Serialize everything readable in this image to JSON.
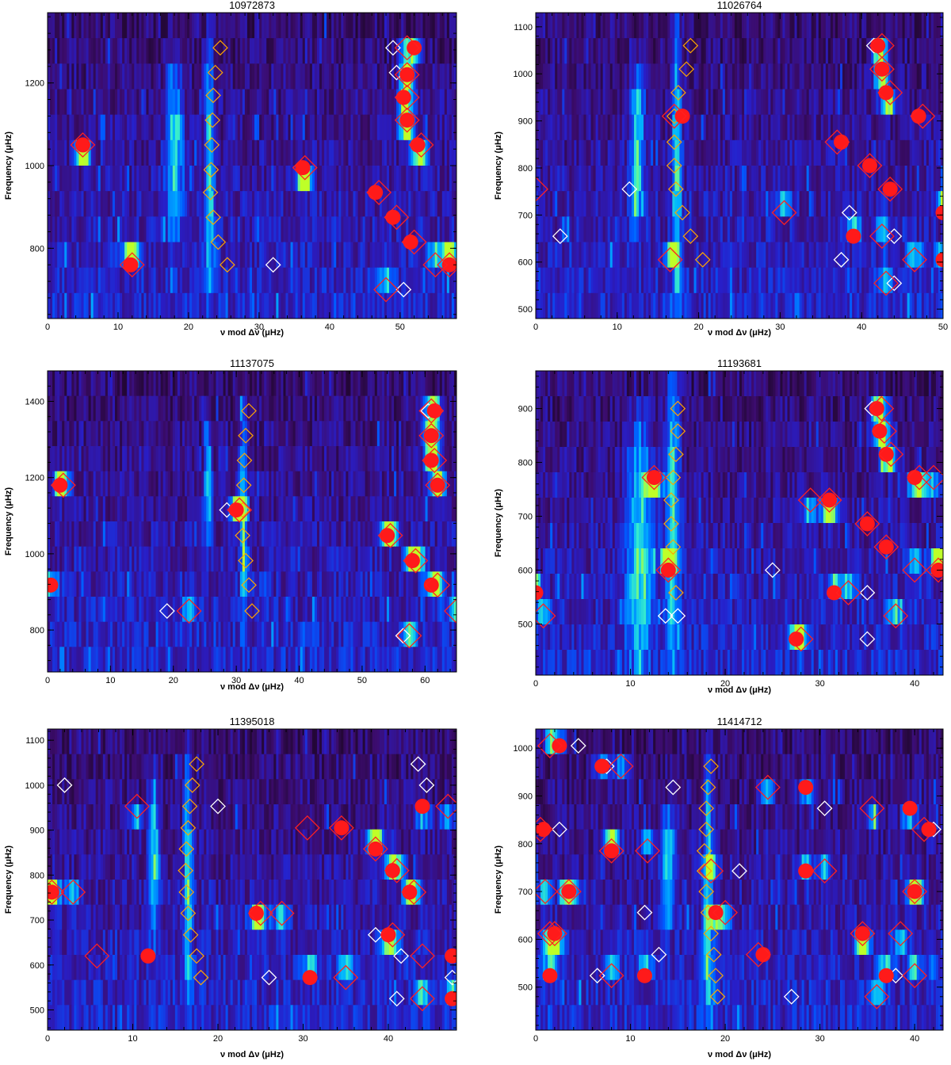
{
  "chart_data": [
    {
      "type": "heatmap",
      "title": "10972873",
      "xlabel": "ν mod Δν (μHz)",
      "ylabel": "Frequency (μHz)",
      "xlim": [
        0,
        58
      ],
      "ylim": [
        630,
        1370
      ],
      "xticks": [
        0,
        10,
        20,
        30,
        40,
        50
      ],
      "yticks": [
        800,
        1000,
        1200
      ],
      "ridges": [
        [
          18,
          1050,
          1.2,
          280
        ],
        [
          23,
          1000,
          0.7,
          380
        ]
      ],
      "red_circles": [
        [
          5,
          1050
        ],
        [
          11.8,
          760
        ],
        [
          36.2,
          995
        ],
        [
          46.5,
          935
        ],
        [
          49,
          875
        ],
        [
          51.5,
          815
        ],
        [
          52.5,
          1050
        ],
        [
          51,
          1110
        ],
        [
          50.5,
          1165
        ],
        [
          51,
          1220
        ],
        [
          52,
          1285
        ],
        [
          57,
          760
        ]
      ],
      "red_diamonds": [
        [
          5,
          1050
        ],
        [
          12,
          760
        ],
        [
          36.5,
          995
        ],
        [
          47,
          935
        ],
        [
          49.5,
          875
        ],
        [
          52,
          815
        ],
        [
          53,
          1050
        ],
        [
          51,
          1110
        ],
        [
          51,
          1165
        ],
        [
          51,
          1220
        ],
        [
          51,
          1285
        ],
        [
          48,
          700
        ],
        [
          55,
          760
        ],
        [
          57,
          760
        ]
      ],
      "white_diamonds": [
        [
          32,
          760
        ],
        [
          50.5,
          700
        ],
        [
          49,
          1285
        ],
        [
          49.5,
          1225
        ]
      ],
      "orange_diamonds": [
        [
          24.5,
          1285
        ],
        [
          23.8,
          1225
        ],
        [
          23.5,
          1170
        ],
        [
          23.4,
          1110
        ],
        [
          23.3,
          1050
        ],
        [
          23.2,
          990
        ],
        [
          23.1,
          935
        ],
        [
          23.5,
          875
        ],
        [
          24.2,
          815
        ],
        [
          25.5,
          760
        ]
      ]
    },
    {
      "type": "heatmap",
      "title": "11026764",
      "xlabel": "ν mod Δν (μHz)",
      "ylabel": "Frequency (μHz)",
      "xlim": [
        0,
        50
      ],
      "ylim": [
        480,
        1130
      ],
      "xticks": [
        0,
        10,
        20,
        30,
        40,
        50
      ],
      "yticks": [
        500,
        600,
        700,
        800,
        900,
        1000,
        1100
      ],
      "ridges": [
        [
          12.5,
          850,
          0.9,
          230
        ],
        [
          17.3,
          800,
          0.6,
          420
        ]
      ],
      "red_circles": [
        [
          18,
          910
        ],
        [
          37.5,
          855
        ],
        [
          41,
          805
        ],
        [
          43.5,
          755
        ],
        [
          42,
          1060
        ],
        [
          42.5,
          1010
        ],
        [
          43,
          960
        ],
        [
          47,
          910
        ],
        [
          39,
          655
        ],
        [
          50,
          705
        ],
        [
          50,
          605
        ]
      ],
      "red_diamonds": [
        [
          17,
          910
        ],
        [
          37,
          855
        ],
        [
          41,
          805
        ],
        [
          43.5,
          755
        ],
        [
          42.5,
          1060
        ],
        [
          42.5,
          1010
        ],
        [
          43.5,
          960
        ],
        [
          47.5,
          910
        ],
        [
          16.5,
          605
        ],
        [
          30.5,
          705
        ],
        [
          42.5,
          655
        ],
        [
          46.5,
          605
        ],
        [
          43,
          555
        ],
        [
          0,
          755
        ]
      ],
      "white_diamonds": [
        [
          3,
          655
        ],
        [
          11.5,
          755
        ],
        [
          38.5,
          705
        ],
        [
          44,
          655
        ],
        [
          37.5,
          605
        ],
        [
          44,
          555
        ],
        [
          41.5,
          1060
        ]
      ],
      "orange_diamonds": [
        [
          19,
          1060
        ],
        [
          18.5,
          1010
        ],
        [
          17.5,
          960
        ],
        [
          17,
          910
        ],
        [
          17,
          855
        ],
        [
          17,
          805
        ],
        [
          17.2,
          755
        ],
        [
          18,
          705
        ],
        [
          19,
          655
        ],
        [
          20.5,
          605
        ]
      ]
    },
    {
      "type": "heatmap",
      "title": "11137075",
      "xlabel": "ν mod Δν (μHz)",
      "ylabel": "Frequency (μHz)",
      "xlim": [
        0,
        65
      ],
      "ylim": [
        690,
        1480
      ],
      "xticks": [
        0,
        10,
        20,
        30,
        40,
        50,
        60
      ],
      "yticks": [
        800,
        1000,
        1200,
        1400
      ],
      "ridges": [
        [
          25.5,
          1180,
          0.6,
          200
        ],
        [
          31.2,
          1120,
          0.6,
          380
        ]
      ],
      "red_circles": [
        [
          2,
          1180
        ],
        [
          30,
          1115
        ],
        [
          54,
          1048
        ],
        [
          58,
          982
        ],
        [
          61,
          918
        ],
        [
          61.5,
          1375
        ],
        [
          61,
          1310
        ],
        [
          61,
          1245
        ],
        [
          62,
          1180
        ],
        [
          0.5,
          918
        ]
      ],
      "red_diamonds": [
        [
          2.5,
          1180
        ],
        [
          30.5,
          1115
        ],
        [
          54.5,
          1048
        ],
        [
          58.5,
          982
        ],
        [
          62,
          918
        ],
        [
          61,
          1375
        ],
        [
          61,
          1310
        ],
        [
          61.5,
          1245
        ],
        [
          62,
          1180
        ],
        [
          22.5,
          850
        ],
        [
          57.5,
          785
        ],
        [
          65,
          850
        ]
      ],
      "white_diamonds": [
        [
          19,
          850
        ],
        [
          28.5,
          1115
        ],
        [
          56.5,
          785
        ],
        [
          60.5,
          1375
        ]
      ],
      "orange_diamonds": [
        [
          32,
          1375
        ],
        [
          31.5,
          1310
        ],
        [
          31.3,
          1245
        ],
        [
          31.2,
          1180
        ],
        [
          31,
          1115
        ],
        [
          31,
          1048
        ],
        [
          31.5,
          982
        ],
        [
          32,
          918
        ],
        [
          32.5,
          850
        ]
      ]
    },
    {
      "type": "heatmap",
      "title": "11193681",
      "xlabel": "ν mod Δν (μHz)",
      "ylabel": "Frequency (μHz)",
      "xlim": [
        0,
        43
      ],
      "ylim": [
        405,
        970
      ],
      "xticks": [
        0,
        10,
        20,
        30,
        40
      ],
      "yticks": [
        500,
        600,
        700,
        800,
        900
      ],
      "ridges": [
        [
          11,
          660,
          1.4,
          280
        ],
        [
          14.5,
          720,
          0.7,
          380
        ]
      ],
      "red_circles": [
        [
          12.5,
          772
        ],
        [
          14,
          600
        ],
        [
          31,
          730
        ],
        [
          35,
          686
        ],
        [
          37,
          643
        ],
        [
          40,
          772
        ],
        [
          42.5,
          600
        ],
        [
          36,
          900
        ],
        [
          36.3,
          858
        ],
        [
          37,
          815
        ],
        [
          0,
          558
        ],
        [
          31.5,
          558
        ],
        [
          27.5,
          472
        ]
      ],
      "red_diamonds": [
        [
          12.5,
          772
        ],
        [
          14,
          600
        ],
        [
          31,
          730
        ],
        [
          35,
          686
        ],
        [
          37,
          643
        ],
        [
          40.5,
          772
        ],
        [
          42.5,
          600
        ],
        [
          36.5,
          900
        ],
        [
          36.8,
          858
        ],
        [
          37.5,
          815
        ],
        [
          42,
          772
        ],
        [
          40,
          600
        ],
        [
          0.8,
          515
        ],
        [
          29,
          730
        ],
        [
          33,
          558
        ],
        [
          28,
          472
        ],
        [
          38,
          515
        ]
      ],
      "white_diamonds": [
        [
          25,
          600
        ],
        [
          35,
          558
        ],
        [
          35,
          472
        ],
        [
          13.7,
          515
        ],
        [
          15,
          515
        ],
        [
          35.5,
          900
        ]
      ],
      "orange_diamonds": [
        [
          15,
          900
        ],
        [
          15,
          858
        ],
        [
          14.8,
          815
        ],
        [
          14.5,
          772
        ],
        [
          14.3,
          730
        ],
        [
          14.3,
          686
        ],
        [
          14.5,
          643
        ],
        [
          14.5,
          600
        ],
        [
          14.8,
          558
        ]
      ]
    },
    {
      "type": "heatmap",
      "title": "11395018",
      "xlabel": "ν mod Δν (μHz)",
      "ylabel": "Frequency (μHz)",
      "xlim": [
        0,
        48
      ],
      "ylim": [
        455,
        1125
      ],
      "xticks": [
        0,
        10,
        20,
        30,
        40
      ],
      "yticks": [
        500,
        600,
        700,
        800,
        900,
        1000,
        1100
      ],
      "ridges": [
        [
          12.5,
          840,
          0.6,
          230
        ],
        [
          16.5,
          820,
          0.5,
          380
        ]
      ],
      "red_circles": [
        [
          0.5,
          762
        ],
        [
          11.8,
          620
        ],
        [
          24.5,
          715
        ],
        [
          30.8,
          572
        ],
        [
          34.5,
          905
        ],
        [
          38.5,
          858
        ],
        [
          40.5,
          810
        ],
        [
          42.5,
          762
        ],
        [
          44,
          953
        ],
        [
          40,
          667
        ],
        [
          47.5,
          620
        ],
        [
          47.5,
          525
        ]
      ],
      "red_diamonds": [
        [
          0.5,
          762
        ],
        [
          3,
          762
        ],
        [
          5.8,
          620
        ],
        [
          10.5,
          953
        ],
        [
          25,
          715
        ],
        [
          27.5,
          715
        ],
        [
          30.5,
          905
        ],
        [
          34.5,
          905
        ],
        [
          38.5,
          858
        ],
        [
          41,
          810
        ],
        [
          43,
          762
        ],
        [
          35,
          572
        ],
        [
          44,
          620
        ],
        [
          40.5,
          667
        ],
        [
          44,
          525
        ],
        [
          47,
          953
        ]
      ],
      "white_diamonds": [
        [
          2,
          1000
        ],
        [
          20,
          953
        ],
        [
          26,
          572
        ],
        [
          38.5,
          667
        ],
        [
          41.5,
          620
        ],
        [
          41,
          525
        ],
        [
          43.5,
          1047
        ],
        [
          44.5,
          1000
        ],
        [
          47.5,
          572
        ]
      ],
      "orange_diamonds": [
        [
          17.5,
          1047
        ],
        [
          17,
          1000
        ],
        [
          16.7,
          953
        ],
        [
          16.5,
          905
        ],
        [
          16.3,
          858
        ],
        [
          16.2,
          810
        ],
        [
          16.3,
          762
        ],
        [
          16.5,
          715
        ],
        [
          16.8,
          667
        ],
        [
          17.5,
          620
        ],
        [
          18,
          572
        ]
      ]
    },
    {
      "type": "heatmap",
      "title": "11414712",
      "xlabel": "ν mod Δν (μHz)",
      "ylabel": "Frequency (μHz)",
      "xlim": [
        0,
        43
      ],
      "ylim": [
        410,
        1040
      ],
      "xticks": [
        0,
        10,
        20,
        30,
        40
      ],
      "yticks": [
        500,
        600,
        700,
        800,
        900,
        1000
      ],
      "ridges": [
        [
          14,
          750,
          0.7,
          160
        ],
        [
          18.2,
          700,
          0.5,
          380
        ]
      ],
      "red_circles": [
        [
          2.5,
          1005
        ],
        [
          7,
          962
        ],
        [
          0.8,
          830
        ],
        [
          8,
          785
        ],
        [
          3.5,
          700
        ],
        [
          2,
          612
        ],
        [
          1.5,
          524
        ],
        [
          11.5,
          524
        ],
        [
          19,
          656
        ],
        [
          24,
          568
        ],
        [
          28.5,
          743
        ],
        [
          28.5,
          918
        ],
        [
          34.5,
          612
        ],
        [
          37,
          524
        ],
        [
          39.5,
          874
        ],
        [
          40,
          700
        ],
        [
          41.5,
          830
        ]
      ],
      "red_diamonds": [
        [
          1.5,
          1005
        ],
        [
          9,
          962
        ],
        [
          0.5,
          830
        ],
        [
          8,
          785
        ],
        [
          11.8,
          785
        ],
        [
          1,
          700
        ],
        [
          3.5,
          700
        ],
        [
          1.5,
          612
        ],
        [
          2,
          612
        ],
        [
          8,
          524
        ],
        [
          18.5,
          743
        ],
        [
          20,
          656
        ],
        [
          24.5,
          918
        ],
        [
          30.5,
          743
        ],
        [
          23.5,
          568
        ],
        [
          34.5,
          612
        ],
        [
          35.5,
          874
        ],
        [
          38.5,
          612
        ],
        [
          36,
          480
        ],
        [
          41,
          830
        ],
        [
          40,
          700
        ],
        [
          40,
          524
        ]
      ],
      "white_diamonds": [
        [
          4.5,
          1005
        ],
        [
          7.5,
          962
        ],
        [
          2.5,
          830
        ],
        [
          6.5,
          524
        ],
        [
          11.5,
          656
        ],
        [
          13,
          568
        ],
        [
          14.5,
          918
        ],
        [
          21.5,
          743
        ],
        [
          27,
          480
        ],
        [
          30.5,
          874
        ],
        [
          42,
          830
        ],
        [
          38,
          524
        ]
      ],
      "orange_diamonds": [
        [
          18.5,
          962
        ],
        [
          18.2,
          918
        ],
        [
          18,
          874
        ],
        [
          18,
          830
        ],
        [
          17.8,
          785
        ],
        [
          17.8,
          743
        ],
        [
          18,
          700
        ],
        [
          18.2,
          656
        ],
        [
          18.5,
          612
        ],
        [
          18.8,
          568
        ],
        [
          19,
          524
        ],
        [
          19.2,
          480
        ]
      ]
    }
  ]
}
